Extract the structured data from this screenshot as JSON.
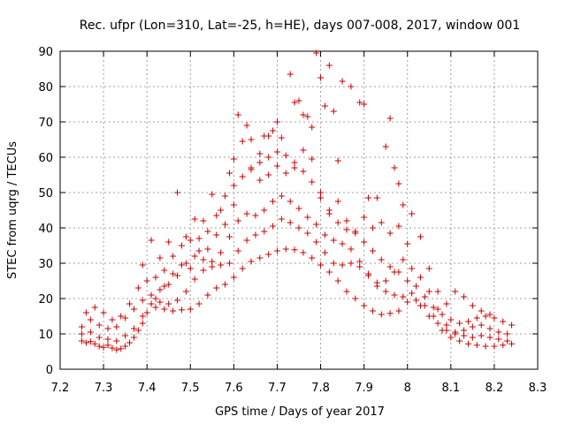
{
  "chart_data": {
    "type": "scatter",
    "title": "Rec. ufpr (Lon=310, Lat=-25, h=HE), days 007-008, 2017, window 001",
    "xlabel": "GPS time / Days of year 2017",
    "ylabel": "STEC from uqrg / TECUs",
    "xlim": [
      7.2,
      8.3
    ],
    "ylim": [
      0,
      90
    ],
    "xticks": [
      "7.2",
      "7.3",
      "7.4",
      "7.5",
      "7.6",
      "7.7",
      "7.8",
      "7.9",
      "8",
      "8.1",
      "8.2",
      "8.3"
    ],
    "yticks": [
      "0",
      "10",
      "20",
      "30",
      "40",
      "50",
      "60",
      "70",
      "80",
      "90"
    ],
    "grid": true,
    "marker": "+",
    "marker_color": "#cc0000",
    "series": [
      {
        "values": [
          [
            7.25,
            8
          ],
          [
            7.26,
            7.5
          ],
          [
            7.27,
            7.8
          ],
          [
            7.28,
            7.2
          ],
          [
            7.29,
            6.5
          ],
          [
            7.3,
            6.2
          ],
          [
            7.31,
            6.8
          ],
          [
            7.32,
            6.0
          ],
          [
            7.33,
            5.5
          ],
          [
            7.34,
            5.8
          ],
          [
            7.35,
            6.5
          ],
          [
            7.36,
            7.5
          ],
          [
            7.37,
            9.0
          ],
          [
            7.38,
            11.0
          ],
          [
            7.39,
            13.0
          ],
          [
            7.4,
            16.0
          ],
          [
            7.42,
            17.5
          ],
          [
            7.44,
            17.0
          ],
          [
            7.46,
            16.5
          ],
          [
            7.48,
            16.8
          ],
          [
            7.5,
            17.0
          ],
          [
            7.52,
            18.5
          ],
          [
            7.54,
            21.0
          ],
          [
            7.56,
            23.0
          ],
          [
            7.58,
            24.0
          ],
          [
            7.6,
            26.0
          ],
          [
            7.62,
            28.5
          ],
          [
            7.64,
            30.5
          ],
          [
            7.66,
            31.5
          ],
          [
            7.68,
            32.5
          ],
          [
            7.7,
            33.5
          ],
          [
            7.72,
            34.0
          ],
          [
            7.74,
            33.8
          ],
          [
            7.76,
            33.0
          ],
          [
            7.78,
            31.5
          ],
          [
            7.8,
            29.5
          ],
          [
            7.82,
            27.5
          ],
          [
            7.84,
            25.0
          ],
          [
            7.86,
            22.0
          ],
          [
            7.88,
            20.0
          ],
          [
            7.9,
            18.0
          ],
          [
            7.92,
            16.5
          ],
          [
            7.94,
            15.5
          ],
          [
            7.96,
            15.8
          ],
          [
            7.98,
            16.5
          ],
          [
            8.0,
            19.0
          ],
          [
            8.02,
            19.5
          ],
          [
            8.04,
            18.0
          ],
          [
            8.06,
            15.0
          ],
          [
            8.08,
            11.0
          ],
          [
            8.1,
            9.0
          ],
          [
            8.12,
            8.0
          ],
          [
            8.14,
            7.2
          ],
          [
            8.16,
            6.8
          ],
          [
            8.18,
            6.5
          ],
          [
            8.2,
            6.5
          ],
          [
            8.22,
            6.8
          ],
          [
            8.24,
            7.2
          ],
          [
            7.25,
            10
          ],
          [
            7.27,
            10.5
          ],
          [
            7.29,
            9.0
          ],
          [
            7.31,
            8.5
          ],
          [
            7.33,
            8.0
          ],
          [
            7.35,
            9.5
          ],
          [
            7.37,
            11.5
          ],
          [
            7.39,
            15.0
          ],
          [
            7.41,
            18.5
          ],
          [
            7.43,
            19.0
          ],
          [
            7.45,
            18.5
          ],
          [
            7.47,
            19.5
          ],
          [
            7.49,
            22.0
          ],
          [
            7.51,
            25.5
          ],
          [
            7.53,
            28.0
          ],
          [
            7.55,
            29.0
          ],
          [
            7.57,
            29.5
          ],
          [
            7.59,
            30.0
          ],
          [
            7.61,
            33.5
          ],
          [
            7.63,
            36.5
          ],
          [
            7.65,
            38.0
          ],
          [
            7.67,
            39.0
          ],
          [
            7.69,
            40.5
          ],
          [
            7.71,
            42.5
          ],
          [
            7.73,
            41.5
          ],
          [
            7.75,
            40.0
          ],
          [
            7.77,
            38.5
          ],
          [
            7.79,
            36.0
          ],
          [
            7.81,
            33.0
          ],
          [
            7.83,
            30.0
          ],
          [
            7.85,
            29.5
          ],
          [
            7.87,
            30.0
          ],
          [
            7.89,
            29.0
          ],
          [
            7.91,
            26.5
          ],
          [
            7.93,
            24.5
          ],
          [
            7.95,
            25.0
          ],
          [
            7.97,
            27.5
          ],
          [
            7.99,
            31.0
          ],
          [
            8.01,
            28.5
          ],
          [
            8.03,
            26.0
          ],
          [
            8.05,
            22.0
          ],
          [
            8.07,
            17.0
          ],
          [
            8.09,
            12.5
          ],
          [
            8.11,
            10.5
          ],
          [
            8.13,
            9.5
          ],
          [
            8.15,
            9.0
          ],
          [
            8.17,
            9.5
          ],
          [
            8.19,
            9.0
          ],
          [
            8.21,
            8.5
          ],
          [
            8.23,
            8.0
          ],
          [
            7.25,
            12
          ],
          [
            7.27,
            14.0
          ],
          [
            7.29,
            12.5
          ],
          [
            7.31,
            11.5
          ],
          [
            7.33,
            12.0
          ],
          [
            7.35,
            14.5
          ],
          [
            7.37,
            17.0
          ],
          [
            7.39,
            19.5
          ],
          [
            7.41,
            21.0
          ],
          [
            7.43,
            22.5
          ],
          [
            7.45,
            24.0
          ],
          [
            7.47,
            26.5
          ],
          [
            7.49,
            30.0
          ],
          [
            7.51,
            32.0
          ],
          [
            7.53,
            31.0
          ],
          [
            7.55,
            30.5
          ],
          [
            7.57,
            33.0
          ],
          [
            7.59,
            37.5
          ],
          [
            7.61,
            42.0
          ],
          [
            7.63,
            44.0
          ],
          [
            7.65,
            43.5
          ],
          [
            7.67,
            45.0
          ],
          [
            7.69,
            47.5
          ],
          [
            7.71,
            49.0
          ],
          [
            7.73,
            47.5
          ],
          [
            7.75,
            45.5
          ],
          [
            7.77,
            43.0
          ],
          [
            7.79,
            41.0
          ],
          [
            7.81,
            38.0
          ],
          [
            7.83,
            36.5
          ],
          [
            7.85,
            35.5
          ],
          [
            7.87,
            34.0
          ],
          [
            7.89,
            30.5
          ],
          [
            7.91,
            27.0
          ],
          [
            7.93,
            23.5
          ],
          [
            7.95,
            22.0
          ],
          [
            7.97,
            21.0
          ],
          [
            7.99,
            20.5
          ],
          [
            8.01,
            21.5
          ],
          [
            8.03,
            18.0
          ],
          [
            8.05,
            15.0
          ],
          [
            8.07,
            13.0
          ],
          [
            8.09,
            11.0
          ],
          [
            8.11,
            10.0
          ],
          [
            8.13,
            11.0
          ],
          [
            8.15,
            12.0
          ],
          [
            8.17,
            12.5
          ],
          [
            8.19,
            11.5
          ],
          [
            8.21,
            10.5
          ],
          [
            8.23,
            10.0
          ],
          [
            7.26,
            16.0
          ],
          [
            7.28,
            17.5
          ],
          [
            7.3,
            16.0
          ],
          [
            7.32,
            14.0
          ],
          [
            7.34,
            15.0
          ],
          [
            7.36,
            18.5
          ],
          [
            7.38,
            23.0
          ],
          [
            7.4,
            25.0
          ],
          [
            7.42,
            26.0
          ],
          [
            7.44,
            28.0
          ],
          [
            7.46,
            32.0
          ],
          [
            7.48,
            35.0
          ],
          [
            7.5,
            36.5
          ],
          [
            7.52,
            37.0
          ],
          [
            7.54,
            39.0
          ],
          [
            7.56,
            43.5
          ],
          [
            7.58,
            49.0
          ],
          [
            7.6,
            52.0
          ],
          [
            7.62,
            54.5
          ],
          [
            7.64,
            56.5
          ],
          [
            7.66,
            58.5
          ],
          [
            7.68,
            60.0
          ],
          [
            7.7,
            61.5
          ],
          [
            7.72,
            60.5
          ],
          [
            7.74,
            58.5
          ],
          [
            7.76,
            56.0
          ],
          [
            7.78,
            53.0
          ],
          [
            7.8,
            48.5
          ],
          [
            7.82,
            44.0
          ],
          [
            7.84,
            41.5
          ],
          [
            7.86,
            39.5
          ],
          [
            7.88,
            38.5
          ],
          [
            7.9,
            36.0
          ],
          [
            7.92,
            33.5
          ],
          [
            7.94,
            31.0
          ],
          [
            7.96,
            29.0
          ],
          [
            7.98,
            27.5
          ],
          [
            8.0,
            25.0
          ],
          [
            8.02,
            23.5
          ],
          [
            8.04,
            20.5
          ],
          [
            8.06,
            17.5
          ],
          [
            8.08,
            15.5
          ],
          [
            8.1,
            14.0
          ],
          [
            8.12,
            13.0
          ],
          [
            8.14,
            13.5
          ],
          [
            8.16,
            14.5
          ],
          [
            8.18,
            15.0
          ],
          [
            8.2,
            14.5
          ],
          [
            8.22,
            13.5
          ],
          [
            8.24,
            12.5
          ],
          [
            7.39,
            29.5
          ],
          [
            7.41,
            36.5
          ],
          [
            7.43,
            31.5
          ],
          [
            7.45,
            36.0
          ],
          [
            7.47,
            50.0
          ],
          [
            7.49,
            37.5
          ],
          [
            7.51,
            42.5
          ],
          [
            7.53,
            42.0
          ],
          [
            7.55,
            49.5
          ],
          [
            7.57,
            45.0
          ],
          [
            7.59,
            55.5
          ],
          [
            7.6,
            59.5
          ],
          [
            7.61,
            72.0
          ],
          [
            7.63,
            69.0
          ],
          [
            7.64,
            65.0
          ],
          [
            7.66,
            61.0
          ],
          [
            7.67,
            66.0
          ],
          [
            7.68,
            66.0
          ],
          [
            7.69,
            67.5
          ],
          [
            7.7,
            70.0
          ],
          [
            7.71,
            65.5
          ],
          [
            7.73,
            83.5
          ],
          [
            7.74,
            75.5
          ],
          [
            7.75,
            76.0
          ],
          [
            7.76,
            72.0
          ],
          [
            7.77,
            71.5
          ],
          [
            7.78,
            68.5
          ],
          [
            7.79,
            89.5
          ],
          [
            7.8,
            82.5
          ],
          [
            7.81,
            74.5
          ],
          [
            7.82,
            86.0
          ],
          [
            7.83,
            73.0
          ],
          [
            7.84,
            59.0
          ],
          [
            7.85,
            81.5
          ],
          [
            7.87,
            80.0
          ],
          [
            7.89,
            75.5
          ],
          [
            7.9,
            75.0
          ],
          [
            7.91,
            48.5
          ],
          [
            7.93,
            48.5
          ],
          [
            7.95,
            63.0
          ],
          [
            7.96,
            71.0
          ],
          [
            7.97,
            57.0
          ],
          [
            7.98,
            52.5
          ],
          [
            7.99,
            46.5
          ],
          [
            8.01,
            44.0
          ],
          [
            8.03,
            37.5
          ],
          [
            8.05,
            28.5
          ],
          [
            8.07,
            22.0
          ],
          [
            8.09,
            18.5
          ],
          [
            8.11,
            22.0
          ],
          [
            8.13,
            20.5
          ],
          [
            8.15,
            18.0
          ],
          [
            8.17,
            16.5
          ],
          [
            8.19,
            15.5
          ],
          [
            7.62,
            64.5
          ],
          [
            7.64,
            57.0
          ],
          [
            7.66,
            53.5
          ],
          [
            7.68,
            55.0
          ],
          [
            7.7,
            57.5
          ],
          [
            7.72,
            55.5
          ],
          [
            7.74,
            57.0
          ],
          [
            7.76,
            62.0
          ],
          [
            7.78,
            59.5
          ],
          [
            7.8,
            50.0
          ],
          [
            7.82,
            45.0
          ],
          [
            7.84,
            47.5
          ],
          [
            7.86,
            42.0
          ],
          [
            7.88,
            39.0
          ],
          [
            7.9,
            43.0
          ],
          [
            7.92,
            40.0
          ],
          [
            7.94,
            41.5
          ],
          [
            7.96,
            38.5
          ],
          [
            7.98,
            40.5
          ],
          [
            8.0,
            35.5
          ],
          [
            7.6,
            46.5
          ],
          [
            7.58,
            41.0
          ],
          [
            7.56,
            38.0
          ],
          [
            7.54,
            34.0
          ],
          [
            7.52,
            33.5
          ],
          [
            7.5,
            28.5
          ],
          [
            7.48,
            29.5
          ],
          [
            7.46,
            27.0
          ],
          [
            7.44,
            23.5
          ],
          [
            7.42,
            20.0
          ]
        ]
      }
    ]
  }
}
